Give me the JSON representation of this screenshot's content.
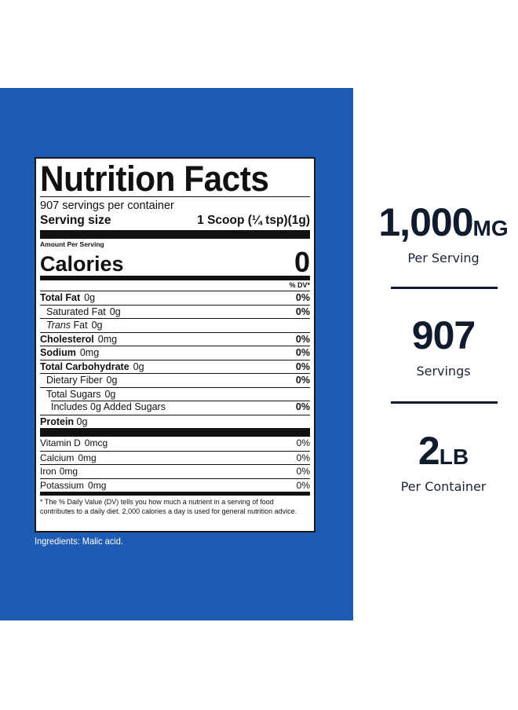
{
  "label": {
    "title": "Nutrition Facts",
    "servings_per_container": "907 servings per container",
    "serving_size_label": "Serving size",
    "serving_size_value": "1 Scoop (¼ tsp)(1g)",
    "amount_per_serving": "Amount Per Serving",
    "calories_label": "Calories",
    "calories_value": "0",
    "dv_header": "% DV*",
    "nutrients": [
      {
        "name": "Total Fat",
        "amount": "0g",
        "dv": "0%"
      },
      {
        "name": "Saturated Fat",
        "amount": "0g",
        "dv": "0%"
      },
      {
        "name": "Trans",
        "name_suffix": "Fat",
        "amount": "0g",
        "dv": ""
      },
      {
        "name": "Cholesterol",
        "amount": "0mg",
        "dv": "0%"
      },
      {
        "name": "Sodium",
        "amount": "0mg",
        "dv": "0%"
      },
      {
        "name": "Total Carbohydrate",
        "amount": "0g",
        "dv": "0%"
      },
      {
        "name": "Dietary Fiber",
        "amount": "0g",
        "dv": "0%"
      },
      {
        "name": "Total Sugars",
        "amount": "0g",
        "dv": ""
      },
      {
        "name": "Includes 0g Added Sugars",
        "amount": "",
        "dv": "0%"
      },
      {
        "name": "Protein",
        "amount": "0g",
        "dv": ""
      }
    ],
    "vitamins": [
      {
        "name": "Vitamin D",
        "amount": "0mcg",
        "dv": "0%"
      },
      {
        "name": "Calcium",
        "amount": "0mg",
        "dv": "0%"
      },
      {
        "name": "Iron",
        "amount": "0mg",
        "dv": "0%"
      },
      {
        "name": "Potassium",
        "amount": "0mg",
        "dv": "0%"
      }
    ],
    "footnote": "* The % Daily Value (DV) tells you how much a nutrient in a serving of food contributes to a daily diet. 2,000 calories a day is used for general nutrition advice."
  },
  "ingredients": "Ingredients: Malic acid.",
  "stats": [
    {
      "value": "1,000",
      "unit": "MG",
      "caption": "Per Serving"
    },
    {
      "value": "907",
      "unit": "",
      "caption": "Servings"
    },
    {
      "value": "2",
      "unit": "LB",
      "caption": "Per Container"
    }
  ],
  "colors": {
    "panel_blue": "#1e5cb3",
    "stat_navy": "#111b2e"
  }
}
